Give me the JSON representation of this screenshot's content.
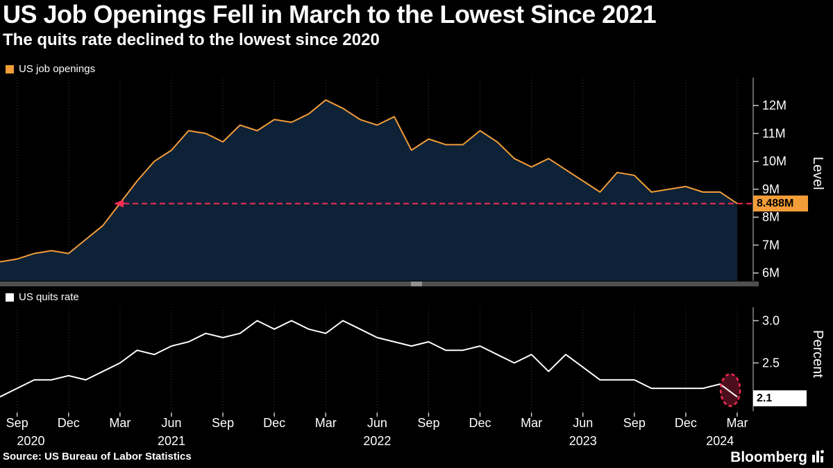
{
  "header": {
    "title": "US Job Openings Fell in March to the Lowest Since 2021",
    "subtitle": "The quits rate declined to the lowest since 2020"
  },
  "footer": {
    "source": "Source: US Bureau of Labor Statistics",
    "brand": "Bloomberg"
  },
  "colors": {
    "background": "#000000",
    "openings_line": "#f29d38",
    "openings_fill": "#0d2137",
    "quits_line": "#ffffff",
    "annotation_red": "#fa2e55",
    "ellipse_fill": "#55101f",
    "grid": "#3d3d3d",
    "axis": "#c8c8c8",
    "text": "#ffffff"
  },
  "chart_data": [
    {
      "type": "area",
      "name": "US job openings",
      "ylabel": "Level",
      "unit": "M",
      "frequency": "monthly",
      "x_start": "Aug 2020",
      "x_end": "Mar 2024",
      "values": [
        6.4,
        6.5,
        6.7,
        6.8,
        6.7,
        7.2,
        7.7,
        8.5,
        9.3,
        10.0,
        10.4,
        11.1,
        11.0,
        10.7,
        11.3,
        11.1,
        11.5,
        11.4,
        11.7,
        12.2,
        11.9,
        11.5,
        11.3,
        11.6,
        10.4,
        10.8,
        10.6,
        10.6,
        11.1,
        10.7,
        10.1,
        9.8,
        10.1,
        9.7,
        9.3,
        8.9,
        9.6,
        9.5,
        8.9,
        9.0,
        9.1,
        8.9,
        8.9,
        8.488
      ],
      "ylim": [
        5.72,
        13.0
      ],
      "y_ticks": [
        {
          "label": "12M",
          "value": 12
        },
        {
          "label": "11M",
          "value": 11
        },
        {
          "label": "10M",
          "value": 10
        },
        {
          "label": "9M",
          "value": 9
        },
        {
          "label": "8M",
          "value": 8
        },
        {
          "label": "7M",
          "value": 7
        },
        {
          "label": "6M",
          "value": 6
        }
      ],
      "x_ticks": [
        {
          "label": "Sep",
          "mi": 1
        },
        {
          "label": "Dec",
          "mi": 4
        },
        {
          "label": "Mar",
          "mi": 7
        },
        {
          "label": "Jun",
          "mi": 10
        },
        {
          "label": "Sep",
          "mi": 13
        },
        {
          "label": "Dec",
          "mi": 16
        },
        {
          "label": "Mar",
          "mi": 19
        },
        {
          "label": "Jun",
          "mi": 22
        },
        {
          "label": "Sep",
          "mi": 25
        },
        {
          "label": "Dec",
          "mi": 28
        },
        {
          "label": "Mar",
          "mi": 31
        },
        {
          "label": "Jun",
          "mi": 34
        },
        {
          "label": "Sep",
          "mi": 37
        },
        {
          "label": "Dec",
          "mi": 40
        },
        {
          "label": "Mar",
          "mi": 43
        }
      ],
      "year_ticks": [
        {
          "label": "2020",
          "mi": 1.8
        },
        {
          "label": "2021",
          "mi": 10
        },
        {
          "label": "2022",
          "mi": 22
        },
        {
          "label": "2023",
          "mi": 34
        },
        {
          "label": "2024",
          "mi": 42
        }
      ],
      "annotation": {
        "style": "dashed-horizontal-line-with-arrow",
        "value": 8.488,
        "label": "8.488M"
      }
    },
    {
      "type": "line",
      "name": "US quits rate",
      "ylabel": "Percent",
      "unit": "%",
      "frequency": "monthly",
      "x_start": "Aug 2020",
      "x_end": "Mar 2024",
      "values": [
        2.1,
        2.2,
        2.3,
        2.3,
        2.35,
        2.3,
        2.4,
        2.5,
        2.65,
        2.6,
        2.7,
        2.75,
        2.85,
        2.8,
        2.85,
        3.0,
        2.9,
        3.0,
        2.9,
        2.85,
        3.0,
        2.9,
        2.8,
        2.75,
        2.7,
        2.75,
        2.65,
        2.65,
        2.7,
        2.6,
        2.5,
        2.6,
        2.4,
        2.6,
        2.45,
        2.3,
        2.3,
        2.3,
        2.2,
        2.2,
        2.2,
        2.2,
        2.25,
        2.1
      ],
      "ylim": [
        1.93,
        3.16
      ],
      "y_ticks": [
        {
          "label": "3.0",
          "value": 3.0
        },
        {
          "label": "2.5",
          "value": 2.5
        }
      ],
      "annotation": {
        "style": "dashed-ellipse-highlight",
        "value": 2.1,
        "label": "2.1"
      }
    }
  ]
}
